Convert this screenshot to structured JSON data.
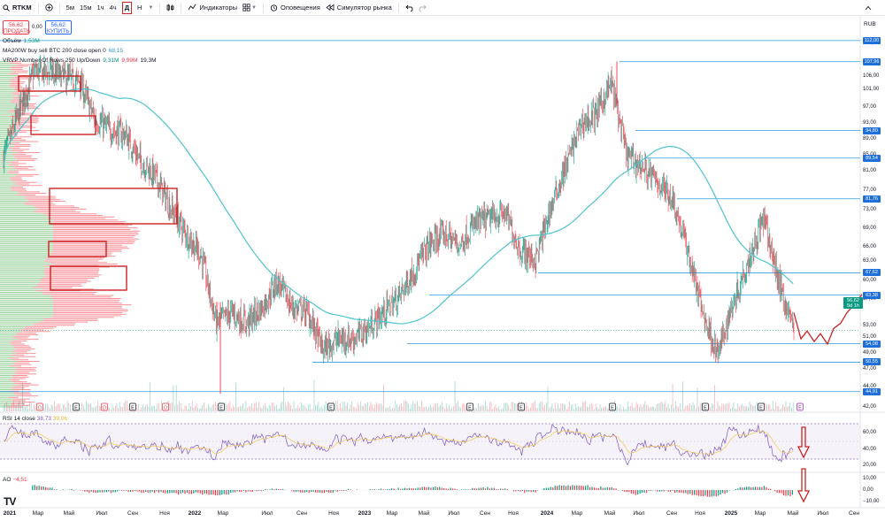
{
  "toolbar": {
    "symbol": "RTKM",
    "intervals": [
      "5м",
      "15м",
      "1ч",
      "4ч"
    ],
    "active_interval": "Д",
    "next_interval": "Н",
    "indicators_label": "Индикаторы",
    "alerts_label": "Оповещения",
    "replay_label": "Симулятор рынка"
  },
  "trade": {
    "sell_price": "56,62",
    "sell_label": "ПРОДАТЬ",
    "spread": "0,00",
    "buy_price": "56,62",
    "buy_label": "КУПИТЬ"
  },
  "legend": {
    "volume_label": "Объём",
    "volume_value": "1,53M",
    "ma_label": "MA200W buy sell BTC 200 close open 0",
    "ma_value": "68,15",
    "vrvp_label": "VRVP Number Of Rows 250 Up/Down",
    "vrvp_up": "9,31M",
    "vrvp_down": "9,99M",
    "vrvp_total": "19,3M"
  },
  "price_scale": {
    "currency": "RUB",
    "ticks": [
      "109,00",
      "106,00",
      "101,00",
      "97,00",
      "93,00",
      "89,00",
      "85,00",
      "81,00",
      "77,00",
      "73,00",
      "69,00",
      "66,00",
      "63,00",
      "60,00",
      "57,00",
      "53,00",
      "51,00",
      "49,00",
      "47,00",
      "44,00",
      "42,00"
    ],
    "levels": [
      {
        "label": "112,00",
        "price": 112.0
      },
      {
        "label": "107,96",
        "price": 107.96
      },
      {
        "label": "94,80",
        "price": 94.8
      },
      {
        "label": "89,54",
        "price": 89.54
      },
      {
        "label": "81,76",
        "price": 81.76
      },
      {
        "label": "67,62",
        "price": 67.62
      },
      {
        "label": "63,38",
        "price": 63.38
      },
      {
        "label": "54,08",
        "price": 54.08
      },
      {
        "label": "50,55",
        "price": 50.55
      },
      {
        "label": "44,91",
        "price": 44.91
      }
    ],
    "current_price": "56,62",
    "countdown": "5d 1h"
  },
  "rsi": {
    "label": "RSI 14 close",
    "value": "38,73",
    "ma_value": "39,06",
    "ticks": [
      "60,00",
      "40,00",
      "20,00"
    ]
  },
  "ao": {
    "label": "AO",
    "value": "−4,51",
    "ticks": [
      "10,00",
      "0,00",
      "−10,00"
    ]
  },
  "time_axis": {
    "labels": [
      {
        "text": "2021",
        "bold": true
      },
      {
        "text": "Мар",
        "bold": false
      },
      {
        "text": "Май",
        "bold": false
      },
      {
        "text": "Июл",
        "bold": false
      },
      {
        "text": "Сен",
        "bold": false
      },
      {
        "text": "Ноя",
        "bold": false
      },
      {
        "text": "2022",
        "bold": true
      },
      {
        "text": "Мар",
        "bold": false
      },
      {
        "text": "Июл",
        "bold": false
      },
      {
        "text": "Сен",
        "bold": false
      },
      {
        "text": "Ноя",
        "bold": false
      },
      {
        "text": "2023",
        "bold": true
      },
      {
        "text": "Мар",
        "bold": false
      },
      {
        "text": "Май",
        "bold": false
      },
      {
        "text": "Июл",
        "bold": false
      },
      {
        "text": "Сен",
        "bold": false
      },
      {
        "text": "Ноя",
        "bold": false
      },
      {
        "text": "2024",
        "bold": true
      },
      {
        "text": "Мар",
        "bold": false
      },
      {
        "text": "Май",
        "bold": false
      },
      {
        "text": "Июл",
        "bold": false
      },
      {
        "text": "Сен",
        "bold": false
      },
      {
        "text": "Ноя",
        "bold": false
      },
      {
        "text": "2025",
        "bold": true
      },
      {
        "text": "Мар",
        "bold": false
      },
      {
        "text": "Май",
        "bold": false
      },
      {
        "text": "Июл",
        "bold": false
      },
      {
        "text": "Сен",
        "bold": false
      }
    ]
  },
  "event_markers": [
    "D",
    "E",
    "D",
    "E",
    "D",
    "E",
    "E",
    "E",
    "E",
    "E",
    "E",
    "E",
    "E",
    "E",
    "E",
    "E",
    "E"
  ],
  "logo": "TV",
  "colors": {
    "up": "#089981",
    "down": "#f23645",
    "ma": "#4fc3cf",
    "level_line": "#2e9cdc",
    "rsi_line": "#7e57c2",
    "rsi_ma": "#f2c94c",
    "rsi_band": "#ede7f6",
    "annotation": "#cc2222",
    "vp_up": "#4caf50",
    "vp_down": "#f23645"
  },
  "chart_data": {
    "type": "candlestick",
    "symbol": "RTKM",
    "timeframe": "Д",
    "period": "2021 – май 2025",
    "ylim": [
      42,
      114
    ],
    "close_path": [
      [
        "2021-01",
        90
      ],
      [
        "2021-02",
        98
      ],
      [
        "2021-03",
        106
      ],
      [
        "2021-04",
        106
      ],
      [
        "2021-05",
        105
      ],
      [
        "2021-06",
        104
      ],
      [
        "2021-07",
        97
      ],
      [
        "2021-08",
        95
      ],
      [
        "2021-09",
        94
      ],
      [
        "2021-10",
        89
      ],
      [
        "2021-11",
        86
      ],
      [
        "2021-12",
        80
      ],
      [
        "2022-01",
        75
      ],
      [
        "2022-02",
        71
      ],
      [
        "2022-03",
        58
      ],
      [
        "2022-04",
        60
      ],
      [
        "2022-05",
        58
      ],
      [
        "2022-06",
        61
      ],
      [
        "2022-07",
        66
      ],
      [
        "2022-08",
        61
      ],
      [
        "2022-09",
        60
      ],
      [
        "2022-10",
        53
      ],
      [
        "2022-11",
        55
      ],
      [
        "2022-12",
        55
      ],
      [
        "2023-01",
        57
      ],
      [
        "2023-02",
        60
      ],
      [
        "2023-03",
        63
      ],
      [
        "2023-04",
        68
      ],
      [
        "2023-05",
        73
      ],
      [
        "2023-06",
        75
      ],
      [
        "2023-07",
        73
      ],
      [
        "2023-08",
        77
      ],
      [
        "2023-09",
        78
      ],
      [
        "2023-10",
        79
      ],
      [
        "2023-11",
        72
      ],
      [
        "2023-12",
        70
      ],
      [
        "2024-01",
        80
      ],
      [
        "2024-02",
        88
      ],
      [
        "2024-03",
        96
      ],
      [
        "2024-04",
        98
      ],
      [
        "2024-05",
        104
      ],
      [
        "2024-06",
        90
      ],
      [
        "2024-07",
        88
      ],
      [
        "2024-08",
        85
      ],
      [
        "2024-09",
        82
      ],
      [
        "2024-10",
        72
      ],
      [
        "2024-11",
        60
      ],
      [
        "2024-12",
        52
      ],
      [
        "2025-01",
        62
      ],
      [
        "2025-02",
        70
      ],
      [
        "2025-03",
        78
      ],
      [
        "2025-04",
        66
      ],
      [
        "2025-05",
        56.62
      ]
    ]
  }
}
